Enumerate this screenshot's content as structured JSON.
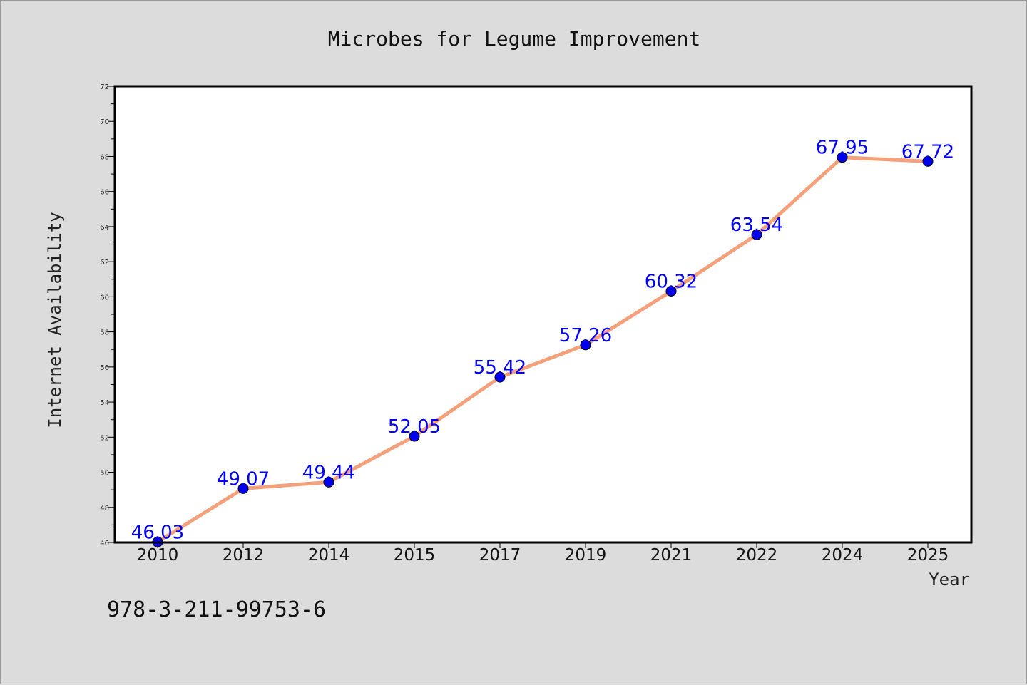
{
  "chart_data": {
    "type": "line",
    "title": "Microbes for Legume Improvement",
    "xlabel": "Year",
    "ylabel": "Internet Availability",
    "categories": [
      "2010",
      "2012",
      "2014",
      "2015",
      "2017",
      "2019",
      "2021",
      "2022",
      "2024",
      "2025"
    ],
    "series": [
      {
        "values": [
          46.03,
          49.07,
          49.44,
          52.05,
          55.42,
          57.26,
          60.32,
          63.54,
          67.95,
          67.72
        ],
        "labels": [
          "46.03",
          "49.07",
          "49.44",
          "52.05",
          "55.42",
          "57.26",
          "60.32",
          "63.54",
          "67.95",
          "67.72"
        ],
        "line_color": "#f4a07a",
        "marker_color": "#0000ee"
      }
    ],
    "ylim": [
      46,
      72
    ],
    "yticks": [
      "46",
      "48",
      "50",
      "52",
      "54",
      "56",
      "58",
      "60",
      "62",
      "64",
      "66",
      "68",
      "70",
      "72"
    ],
    "grid": false,
    "legend": false
  },
  "footer_text": "978-3-211-99753-6",
  "colors": {
    "background": "#dcdcdc",
    "plot_background": "#ffffff",
    "data_label": "#0000ff"
  }
}
